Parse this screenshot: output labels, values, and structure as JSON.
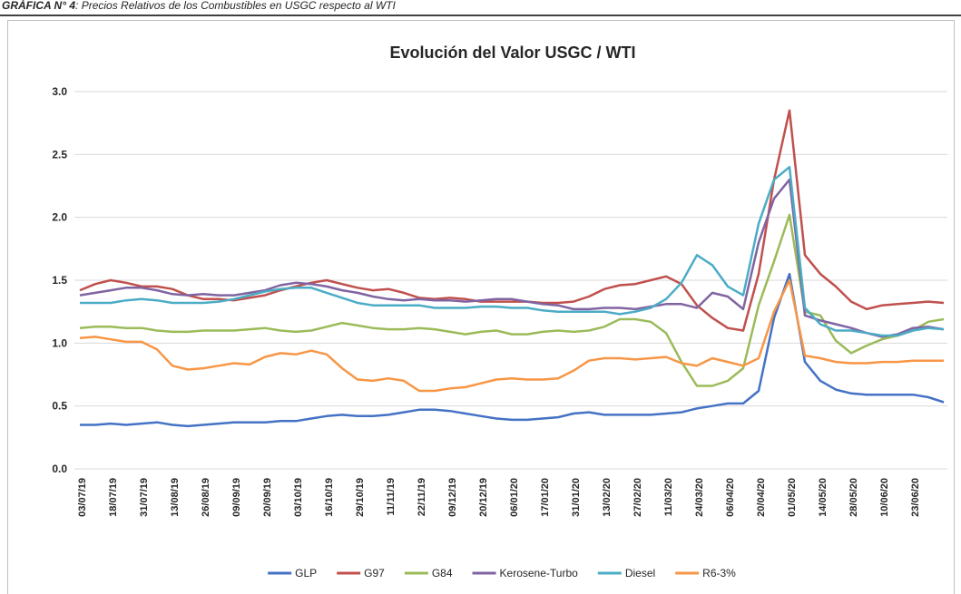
{
  "header": {
    "label": "GRÁFICA N° 4",
    "text": ": Precios Relativos de los Combustibles en USGC respecto al WTI"
  },
  "chart_data": {
    "type": "line",
    "title": "Evolución del Valor USGC / WTI",
    "categories": [
      "03/07/19",
      null,
      "18/07/19",
      null,
      "31/07/19",
      null,
      "13/08/19",
      null,
      "26/08/19",
      null,
      "09/09/19",
      null,
      "20/09/19",
      null,
      "03/10/19",
      null,
      "16/10/19",
      null,
      "29/10/19",
      null,
      "11/11/19",
      null,
      "22/11/19",
      null,
      "09/12/19",
      null,
      "20/12/19",
      null,
      "06/01/20",
      null,
      "17/01/20",
      null,
      "31/01/20",
      null,
      "13/02/20",
      null,
      "27/02/20",
      null,
      "11/03/20",
      null,
      "24/03/20",
      null,
      "06/04/20",
      null,
      "20/04/20",
      null,
      "01/05/20",
      null,
      "14/05/20",
      null,
      "28/05/20",
      null,
      "10/06/20",
      null,
      "23/06/20",
      null,
      null
    ],
    "series": [
      {
        "name": "GLP",
        "color": "#4472c4",
        "values": [
          0.35,
          0.35,
          0.36,
          0.35,
          0.36,
          0.37,
          0.35,
          0.34,
          0.35,
          0.36,
          0.37,
          0.37,
          0.37,
          0.38,
          0.38,
          0.4,
          0.42,
          0.43,
          0.42,
          0.42,
          0.43,
          0.45,
          0.47,
          0.47,
          0.46,
          0.44,
          0.42,
          0.4,
          0.39,
          0.39,
          0.4,
          0.41,
          0.44,
          0.45,
          0.43,
          0.43,
          0.43,
          0.43,
          0.44,
          0.45,
          0.48,
          0.5,
          0.52,
          0.52,
          0.62,
          1.2,
          1.55,
          0.85,
          0.7,
          0.63,
          0.6,
          0.59,
          0.59,
          0.59,
          0.59,
          0.57,
          0.53
        ]
      },
      {
        "name": "G97",
        "color": "#c0504d",
        "values": [
          1.42,
          1.47,
          1.5,
          1.48,
          1.45,
          1.45,
          1.43,
          1.38,
          1.35,
          1.35,
          1.34,
          1.36,
          1.38,
          1.42,
          1.45,
          1.48,
          1.5,
          1.47,
          1.44,
          1.42,
          1.43,
          1.4,
          1.36,
          1.35,
          1.36,
          1.35,
          1.33,
          1.33,
          1.33,
          1.33,
          1.32,
          1.32,
          1.33,
          1.37,
          1.43,
          1.46,
          1.47,
          1.5,
          1.53,
          1.47,
          1.3,
          1.2,
          1.12,
          1.1,
          1.55,
          2.3,
          2.85,
          1.7,
          1.55,
          1.45,
          1.33,
          1.27,
          1.3,
          1.31,
          1.32,
          1.33,
          1.32
        ]
      },
      {
        "name": "G84",
        "color": "#9bbb59",
        "values": [
          1.12,
          1.13,
          1.13,
          1.12,
          1.12,
          1.1,
          1.09,
          1.09,
          1.1,
          1.1,
          1.1,
          1.11,
          1.12,
          1.1,
          1.09,
          1.1,
          1.13,
          1.16,
          1.14,
          1.12,
          1.11,
          1.11,
          1.12,
          1.11,
          1.09,
          1.07,
          1.09,
          1.1,
          1.07,
          1.07,
          1.09,
          1.1,
          1.09,
          1.1,
          1.13,
          1.19,
          1.19,
          1.17,
          1.08,
          0.85,
          0.66,
          0.66,
          0.7,
          0.8,
          1.3,
          1.65,
          2.02,
          1.25,
          1.22,
          1.02,
          0.92,
          0.98,
          1.03,
          1.06,
          1.1,
          1.17,
          1.19
        ]
      },
      {
        "name": "Kerosene-Turbo",
        "color": "#8064a2",
        "values": [
          1.38,
          1.4,
          1.42,
          1.44,
          1.44,
          1.42,
          1.39,
          1.38,
          1.39,
          1.38,
          1.38,
          1.4,
          1.42,
          1.46,
          1.48,
          1.47,
          1.45,
          1.42,
          1.4,
          1.37,
          1.35,
          1.34,
          1.35,
          1.34,
          1.34,
          1.33,
          1.34,
          1.35,
          1.35,
          1.33,
          1.31,
          1.3,
          1.27,
          1.27,
          1.28,
          1.28,
          1.27,
          1.29,
          1.31,
          1.31,
          1.28,
          1.4,
          1.37,
          1.27,
          1.8,
          2.15,
          2.3,
          1.22,
          1.18,
          1.15,
          1.12,
          1.08,
          1.05,
          1.07,
          1.12,
          1.13,
          1.11
        ]
      },
      {
        "name": "Diesel",
        "color": "#4bacc6",
        "values": [
          1.32,
          1.32,
          1.32,
          1.34,
          1.35,
          1.34,
          1.32,
          1.32,
          1.32,
          1.33,
          1.35,
          1.38,
          1.41,
          1.43,
          1.44,
          1.44,
          1.4,
          1.36,
          1.32,
          1.3,
          1.3,
          1.3,
          1.3,
          1.28,
          1.28,
          1.28,
          1.29,
          1.29,
          1.28,
          1.28,
          1.26,
          1.25,
          1.25,
          1.25,
          1.25,
          1.23,
          1.25,
          1.28,
          1.35,
          1.48,
          1.7,
          1.62,
          1.45,
          1.38,
          1.95,
          2.3,
          2.4,
          1.28,
          1.15,
          1.1,
          1.1,
          1.08,
          1.06,
          1.06,
          1.1,
          1.12,
          1.11
        ]
      },
      {
        "name": "R6-3%",
        "color": "#f79646",
        "values": [
          1.04,
          1.05,
          1.03,
          1.01,
          1.01,
          0.95,
          0.82,
          0.79,
          0.8,
          0.82,
          0.84,
          0.83,
          0.89,
          0.92,
          0.91,
          0.94,
          0.91,
          0.8,
          0.71,
          0.7,
          0.72,
          0.7,
          0.62,
          0.62,
          0.64,
          0.65,
          0.68,
          0.71,
          0.72,
          0.71,
          0.71,
          0.72,
          0.78,
          0.86,
          0.88,
          0.88,
          0.87,
          0.88,
          0.89,
          0.84,
          0.82,
          0.88,
          0.85,
          0.82,
          0.88,
          1.25,
          1.5,
          0.9,
          0.88,
          0.85,
          0.84,
          0.84,
          0.85,
          0.85,
          0.86,
          0.86,
          0.86
        ]
      }
    ],
    "ylim": [
      0,
      3
    ],
    "yticks": [
      {
        "value": 0,
        "label": "0.0"
      },
      0.5,
      {
        "value": 1,
        "label": "1.0"
      },
      1.5,
      {
        "value": 2,
        "label": "2.0"
      },
      2.5,
      {
        "value": 3,
        "label": "3.0"
      }
    ],
    "grid": true,
    "legend": "bottom"
  }
}
